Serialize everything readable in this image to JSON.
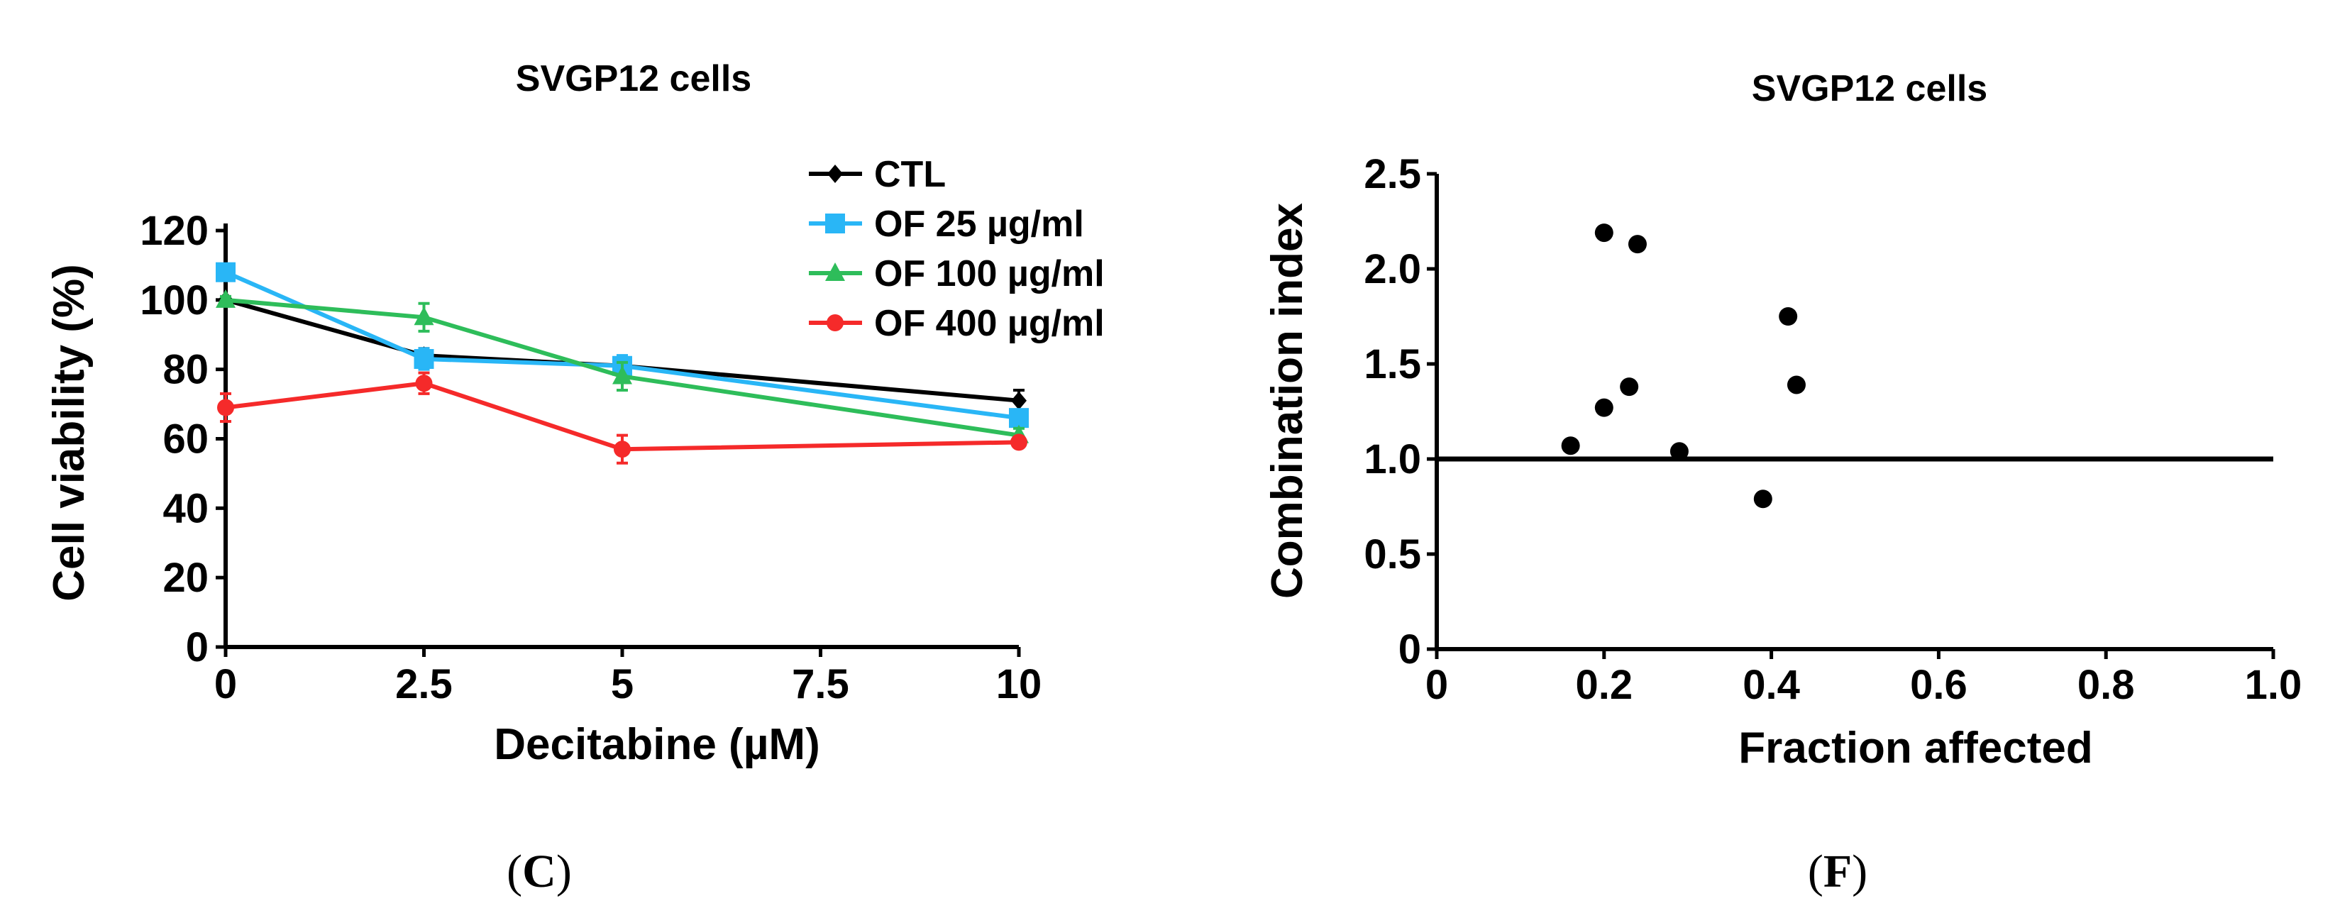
{
  "chart_data": [
    {
      "type": "line",
      "title": "SVGP12 cells",
      "xlabel": "Decitabine (µM)",
      "ylabel": "Cell viability (%)",
      "x": [
        0,
        2.5,
        5,
        10
      ],
      "xticks": [
        "0",
        "2.5",
        "5",
        "7.5",
        "10"
      ],
      "xtick_values": [
        0,
        2.5,
        5,
        7.5,
        10
      ],
      "yticks": [
        "0",
        "20",
        "40",
        "60",
        "80",
        "100",
        "120"
      ],
      "ytick_values": [
        0,
        20,
        40,
        60,
        80,
        100,
        120
      ],
      "xlim": [
        0,
        10
      ],
      "ylim": [
        0,
        120
      ],
      "grid": false,
      "legend_position": "top-right",
      "series": [
        {
          "name": "CTL",
          "color": "#000000",
          "marker": "diamond",
          "values": [
            100,
            84,
            81,
            71
          ],
          "errors": [
            1,
            2,
            2,
            3
          ]
        },
        {
          "name": "OF 25 µg/ml",
          "color": "#29b6f6",
          "marker": "square",
          "values": [
            108,
            83,
            81,
            66
          ],
          "errors": [
            1,
            3,
            3,
            2
          ]
        },
        {
          "name": "OF 100 µg/ml",
          "color": "#2ebd5a",
          "marker": "triangle",
          "values": [
            100,
            95,
            78,
            61
          ],
          "errors": [
            1,
            4,
            4,
            2
          ]
        },
        {
          "name": "OF 400 µg/ml",
          "color": "#f52a2a",
          "marker": "circle",
          "values": [
            69,
            76,
            57,
            59
          ],
          "errors": [
            4,
            3,
            4,
            1
          ]
        }
      ],
      "panel_label": {
        "open": "(",
        "letter": "C",
        "close": ")"
      }
    },
    {
      "type": "scatter",
      "title": "SVGP12 cells",
      "xlabel": "Fraction affected",
      "ylabel": "Combination index",
      "xticks": [
        "0",
        "0.2",
        "0.4",
        "0.6",
        "0.8",
        "1.0"
      ],
      "xtick_values": [
        0,
        0.2,
        0.4,
        0.6,
        0.8,
        1.0
      ],
      "yticks": [
        "0",
        "0.5",
        "1.0",
        "1.5",
        "2.0",
        "2.5"
      ],
      "ytick_values": [
        0,
        0.5,
        1.0,
        1.5,
        2.0,
        2.5
      ],
      "xlim": [
        0,
        1.0
      ],
      "ylim": [
        0,
        2.5
      ],
      "grid": false,
      "reference_line_y": 1.0,
      "points": [
        {
          "x": 0.16,
          "y": 1.07
        },
        {
          "x": 0.2,
          "y": 1.27
        },
        {
          "x": 0.2,
          "y": 2.19
        },
        {
          "x": 0.23,
          "y": 1.38
        },
        {
          "x": 0.24,
          "y": 2.13
        },
        {
          "x": 0.29,
          "y": 1.04
        },
        {
          "x": 0.39,
          "y": 0.79
        },
        {
          "x": 0.42,
          "y": 1.75
        },
        {
          "x": 0.43,
          "y": 1.39
        }
      ],
      "point_color": "#000000",
      "panel_label": {
        "open": "(",
        "letter": "F",
        "close": ")"
      }
    }
  ]
}
